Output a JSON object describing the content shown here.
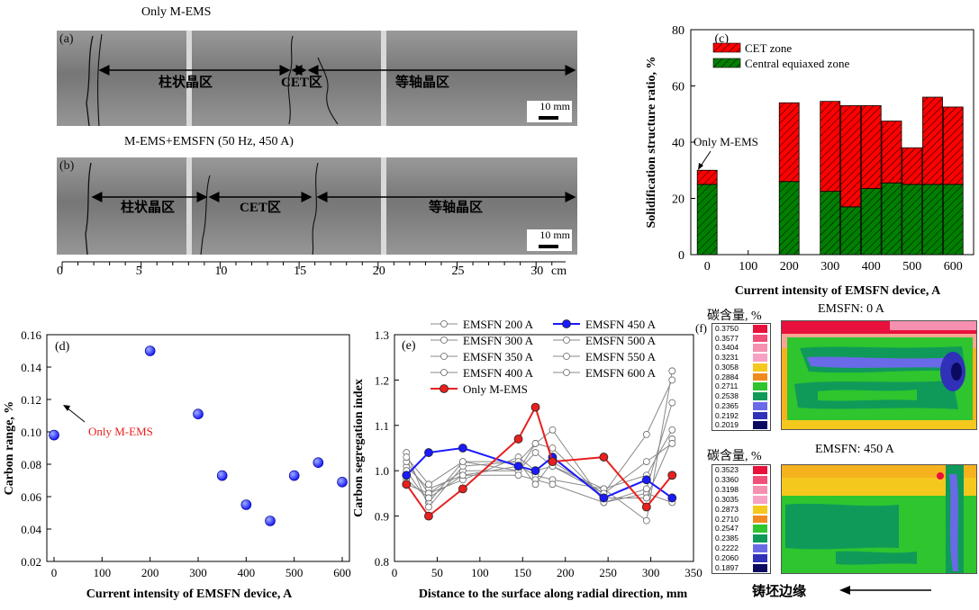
{
  "macro": {
    "a_title": "Only M-EMS",
    "a_tag": "(a)",
    "a_regions": [
      "柱状晶区",
      "CET区",
      "等轴晶区"
    ],
    "b_title": "M-EMS+EMSFN (50 Hz, 450 A)",
    "b_tag": "(b)",
    "b_regions": [
      "柱状晶区",
      "CET区",
      "等轴晶区"
    ],
    "scale_bar": "10 mm",
    "ruler_ticks": [
      "0",
      "5",
      "10",
      "15",
      "20",
      "25",
      "30"
    ],
    "ruler_unit": "cm"
  },
  "chart_data": [
    {
      "panel": "(c)",
      "type": "bar",
      "stacked": true,
      "ylabel": "Solidification structure ratio, %",
      "xlabel": "Current intensity of EMSFN device, A",
      "xticks": [
        0,
        100,
        200,
        300,
        400,
        500,
        600
      ],
      "xlim": [
        -40,
        650
      ],
      "ylim": [
        0,
        80
      ],
      "yticks": [
        0,
        20,
        40,
        60,
        80
      ],
      "annotation": "Only M-EMS",
      "colors": {
        "cet": "#ff0000",
        "central": "#008000"
      },
      "x": [
        0,
        200,
        300,
        350,
        400,
        450,
        500,
        550,
        600
      ],
      "series": [
        {
          "name": "Central equiaxed zone",
          "values": [
            25,
            26,
            22.5,
            17,
            23.5,
            25.5,
            25,
            25,
            25
          ]
        },
        {
          "name": "CET zone",
          "values": [
            5,
            28,
            32,
            36,
            29.5,
            22,
            13,
            31,
            27.5
          ]
        }
      ],
      "legend_position": "top-right"
    },
    {
      "panel": "(d)",
      "type": "scatter",
      "xlabel": "Current intensity of EMSFN device, A",
      "ylabel": "Carbon range, %",
      "xlim": [
        -15,
        615
      ],
      "xticks": [
        0,
        100,
        200,
        300,
        400,
        500,
        600
      ],
      "ylim": [
        0.02,
        0.16
      ],
      "yticks": [
        "0.02",
        "0.04",
        "0.06",
        "0.08",
        "0.10",
        "0.12",
        "0.14",
        "0.16"
      ],
      "x": [
        0,
        200,
        300,
        350,
        400,
        450,
        500,
        550,
        600
      ],
      "y": [
        0.098,
        0.15,
        0.111,
        0.073,
        0.055,
        0.045,
        0.073,
        0.081,
        0.069
      ],
      "annotation": "Only M-EMS",
      "marker_color": "#1a1aff",
      "annotation_color": "#e8201e"
    },
    {
      "panel": "(e)",
      "type": "line",
      "xlabel": "Distance to the surface along radial direction, mm",
      "ylabel": "Carbon segregation index",
      "xlim": [
        0,
        350
      ],
      "xticks": [
        0,
        50,
        100,
        150,
        200,
        250,
        300,
        350
      ],
      "ylim": [
        0.8,
        1.3
      ],
      "yticks": [
        "0.8",
        "0.9",
        "1.0",
        "1.1",
        "1.2",
        "1.3"
      ],
      "series": [
        {
          "name": "EMSFN 200 A",
          "color": "#888888",
          "x": [
            14,
            40,
            80,
            145,
            165,
            185,
            245,
            295,
            325
          ],
          "y": [
            1.01,
            0.96,
            0.99,
            1.01,
            0.99,
            0.98,
            0.96,
            0.89,
            1.22
          ]
        },
        {
          "name": "EMSFN 300 A",
          "color": "#888888",
          "x": [
            14,
            40,
            80,
            145,
            165,
            185,
            245,
            295,
            325
          ],
          "y": [
            1.02,
            0.95,
            1.0,
            1.0,
            1.04,
            1.01,
            0.95,
            1.08,
            1.2
          ]
        },
        {
          "name": "EMSFN 350 A",
          "color": "#888888",
          "x": [
            14,
            40,
            80,
            145,
            165,
            185,
            245,
            295,
            325
          ],
          "y": [
            1.0,
            0.93,
            1.02,
            1.0,
            1.06,
            1.09,
            0.93,
            0.95,
            0.93
          ]
        },
        {
          "name": "EMSFN 400 A",
          "color": "#888888",
          "x": [
            14,
            40,
            80,
            145,
            165,
            185,
            245,
            295,
            325
          ],
          "y": [
            1.04,
            0.92,
            1.01,
            1.02,
            1.06,
            1.05,
            0.94,
            0.94,
            1.07
          ]
        },
        {
          "name": "EMSFN 450 A",
          "color": "#1a1aff",
          "x": [
            14,
            40,
            80,
            145,
            165,
            185,
            245,
            295,
            325
          ],
          "y": [
            0.99,
            1.04,
            1.05,
            1.01,
            1.0,
            1.03,
            0.94,
            0.98,
            0.94
          ]
        },
        {
          "name": "EMSFN 500 A",
          "color": "#888888",
          "x": [
            14,
            40,
            80,
            145,
            165,
            185,
            245,
            295,
            325
          ],
          "y": [
            0.97,
            0.95,
            0.98,
            1.03,
            1.0,
            1.01,
            0.96,
            0.99,
            1.09
          ]
        },
        {
          "name": "EMSFN 550 A",
          "color": "#888888",
          "x": [
            14,
            40,
            80,
            145,
            165,
            185,
            245,
            295,
            325
          ],
          "y": [
            0.98,
            0.94,
            0.99,
            0.99,
            0.98,
            0.97,
            0.93,
            0.96,
            1.15
          ]
        },
        {
          "name": "EMSFN 600 A",
          "color": "#888888",
          "x": [
            14,
            40,
            80,
            145,
            165,
            185,
            245,
            295,
            325
          ],
          "y": [
            1.03,
            0.97,
            1.02,
            1.02,
            0.97,
            1.02,
            0.95,
            1.02,
            1.06
          ]
        },
        {
          "name": "Only M-EMS",
          "color": "#e8201e",
          "x": [
            14,
            40,
            80,
            145,
            165,
            185,
            245,
            295,
            325
          ],
          "y": [
            0.97,
            0.9,
            0.96,
            1.07,
            1.14,
            1.02,
            1.03,
            0.92,
            0.99
          ]
        }
      ],
      "legend_position": "top-left"
    }
  ],
  "maps": {
    "panel": "(f)",
    "top_label": "碳含量, %",
    "top_title": "EMSFN: 0 A",
    "top_scale": [
      "0.3750",
      "0.3577",
      "0.3404",
      "0.3231",
      "0.3058",
      "0.2884",
      "0.2711",
      "0.2538",
      "0.2365",
      "0.2192",
      "0.2019"
    ],
    "bottom_label": "碳含量, %",
    "bottom_title": "EMSFN: 450 A",
    "bottom_scale": [
      "0.3523",
      "0.3360",
      "0.3198",
      "0.3035",
      "0.2873",
      "0.2710",
      "0.2547",
      "0.2385",
      "0.2222",
      "0.2060",
      "0.1897"
    ],
    "scale_colors": [
      "#e8103c",
      "#f0507a",
      "#f590b0",
      "#f7a1c4",
      "#f5c81e",
      "#f08a1e",
      "#2ec52e",
      "#0f9a5a",
      "#6a6ae8",
      "#3030b8",
      "#0a0a60"
    ],
    "edge_label": "铸坯边缘"
  }
}
